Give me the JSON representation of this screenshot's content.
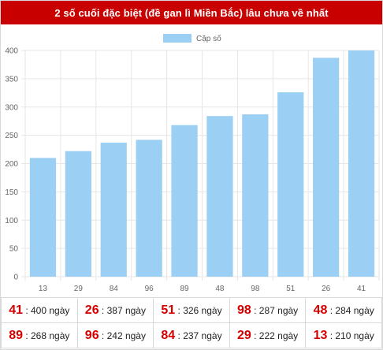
{
  "header": {
    "title": "2 số cuối đặc biệt (đề gan lì Miền Bắc) lâu chưa về nhất"
  },
  "chart_data": {
    "type": "bar",
    "legend": {
      "label": "Cặp số",
      "placement": "top-center"
    },
    "categories": [
      "13",
      "29",
      "84",
      "96",
      "89",
      "48",
      "98",
      "51",
      "26",
      "41"
    ],
    "series": [
      {
        "name": "Cặp số",
        "values": [
          210,
          222,
          237,
          242,
          268,
          284,
          287,
          326,
          387,
          400
        ],
        "color": "#9bcff3"
      }
    ],
    "yticks": [
      "0",
      "50",
      "100",
      "150",
      "200",
      "250",
      "300",
      "350",
      "400"
    ],
    "ylim": [
      0,
      400
    ],
    "grid": true
  },
  "table": {
    "rows": [
      [
        {
          "num": "41",
          "days": " : 400 ngày"
        },
        {
          "num": "26",
          "days": " : 387 ngày"
        },
        {
          "num": "51",
          "days": " : 326 ngày"
        },
        {
          "num": "98",
          "days": " : 287 ngày"
        },
        {
          "num": "48",
          "days": " : 284 ngày"
        }
      ],
      [
        {
          "num": "89",
          "days": " : 268 ngày"
        },
        {
          "num": "96",
          "days": " : 242 ngày"
        },
        {
          "num": "84",
          "days": " : 237 ngày"
        },
        {
          "num": "29",
          "days": " : 222 ngày"
        },
        {
          "num": "13",
          "days": " : 210 ngày"
        }
      ]
    ]
  },
  "colors": {
    "header_bg": "#c80000",
    "number": "#d40000",
    "bar": "#9bcff3"
  }
}
